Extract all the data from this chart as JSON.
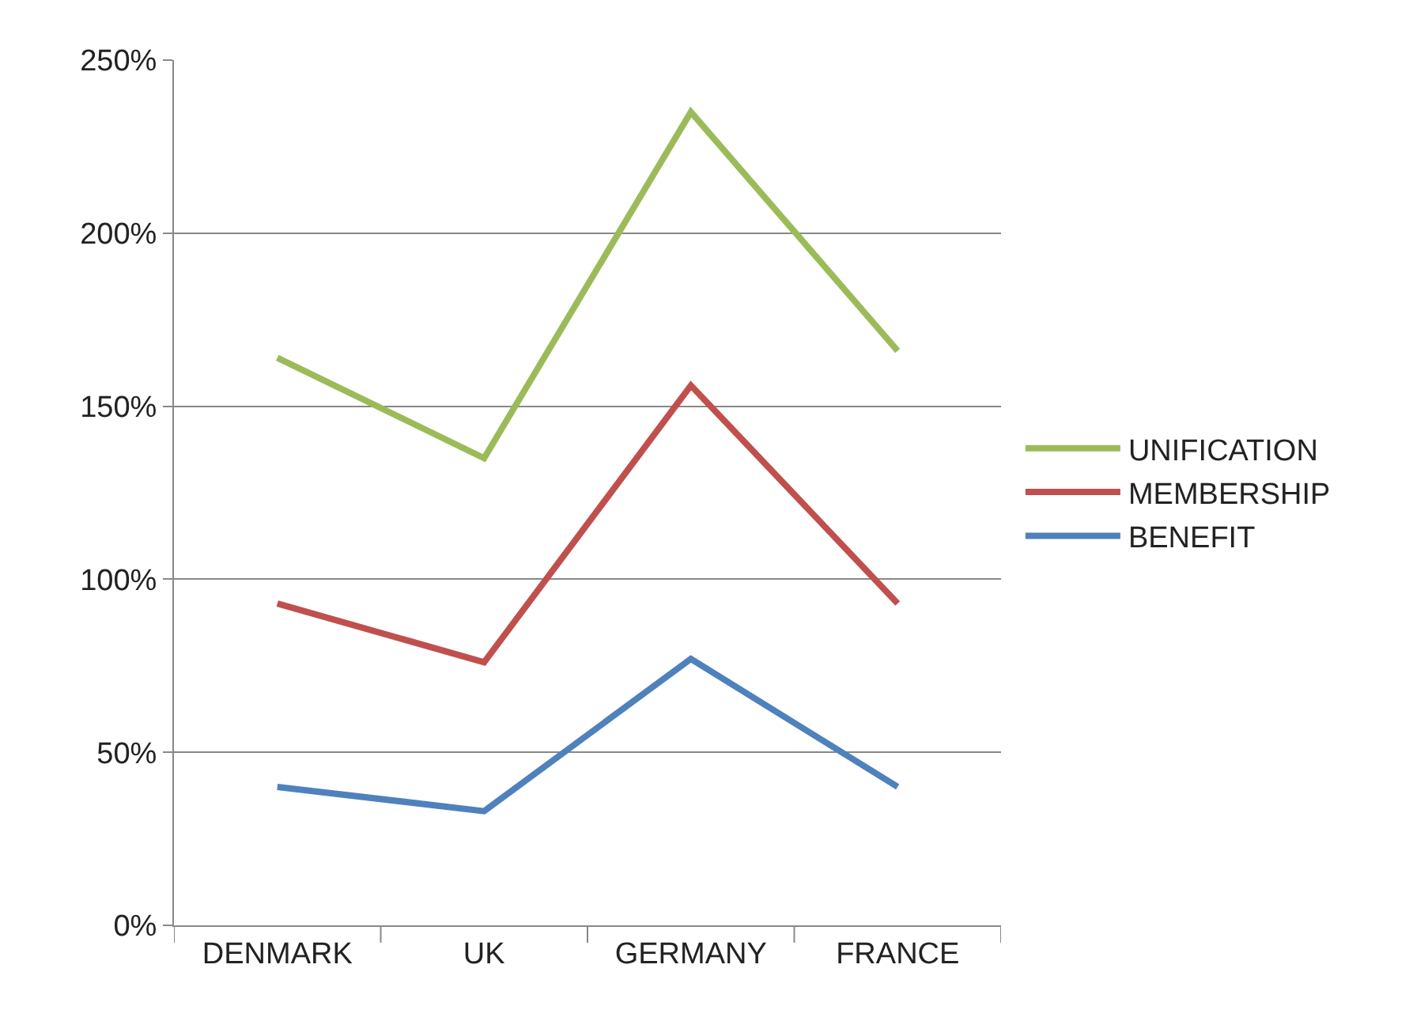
{
  "chart_data": {
    "type": "line",
    "categories": [
      "DENMARK",
      "UK",
      "GERMANY",
      "FRANCE"
    ],
    "series": [
      {
        "name": "UNIFICATION",
        "color": "#9bbb59",
        "values": [
          164,
          135,
          235,
          166
        ]
      },
      {
        "name": "MEMBERSHIP",
        "color": "#c0504d",
        "values": [
          93,
          76,
          156,
          93
        ]
      },
      {
        "name": "BENEFIT",
        "color": "#4f81bd",
        "values": [
          40,
          33,
          77,
          40
        ]
      }
    ],
    "ylim": [
      0,
      250
    ],
    "yticks": [
      {
        "value": 0,
        "label": "0%"
      },
      {
        "value": 50,
        "label": "50%"
      },
      {
        "value": 100,
        "label": "100%"
      },
      {
        "value": 150,
        "label": "150%"
      },
      {
        "value": 200,
        "label": "200%"
      },
      {
        "value": 250,
        "label": "250%"
      }
    ],
    "grid": "y",
    "legend": "right",
    "marker": "none",
    "line_style": "solid"
  }
}
